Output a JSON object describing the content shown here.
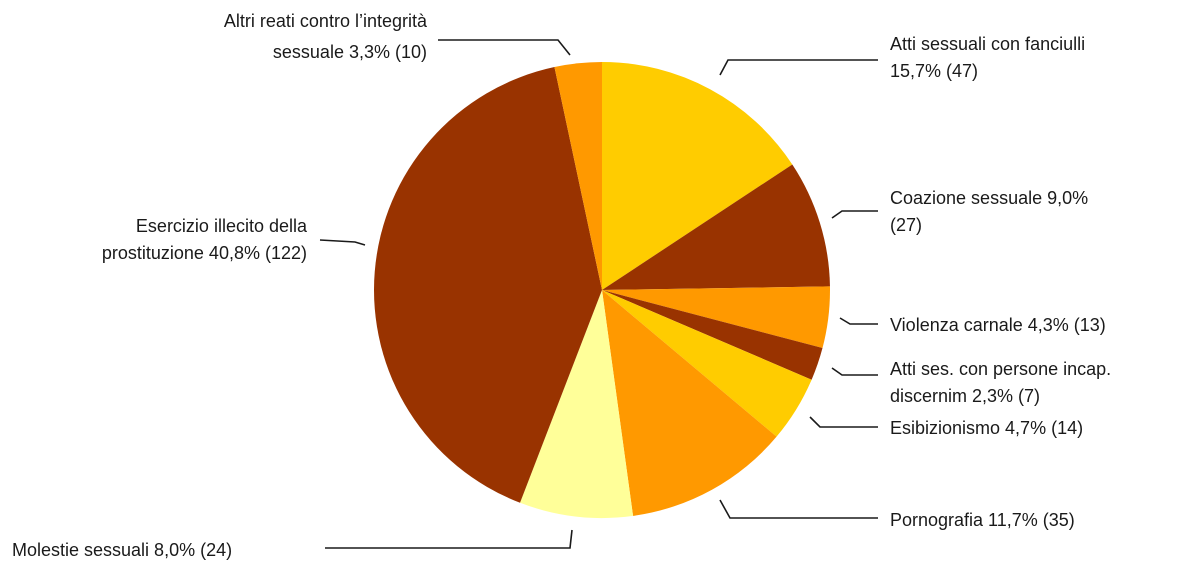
{
  "chart_data": {
    "type": "pie",
    "title": "",
    "start_angle_deg": 0,
    "direction": "clockwise",
    "slices": [
      {
        "name": "Atti sessuali con fanciulli",
        "value": 47,
        "percent": "15,7%",
        "label_lines": [
          "Atti sessuali con fanciulli",
          "15,7% (47)"
        ],
        "color": "#FFCC00"
      },
      {
        "name": "Coazione sessuale",
        "value": 27,
        "percent": "9,0%",
        "label_lines": [
          "Coazione sessuale 9,0%",
          "(27)"
        ],
        "color": "#993300"
      },
      {
        "name": "Violenza carnale",
        "value": 13,
        "percent": "4,3%",
        "label_lines": [
          "Violenza carnale 4,3% (13)"
        ],
        "color": "#FF9900"
      },
      {
        "name": "Atti ses. con persone incap. discernim",
        "value": 7,
        "percent": "2,3%",
        "label_lines": [
          "Atti ses. con persone incap.",
          "discernim 2,3% (7)"
        ],
        "color": "#993300"
      },
      {
        "name": "Esibizionismo",
        "value": 14,
        "percent": "4,7%",
        "label_lines": [
          "Esibizionismo 4,7% (14)"
        ],
        "color": "#FFCC00"
      },
      {
        "name": "Pornografia",
        "value": 35,
        "percent": "11,7%",
        "label_lines": [
          "Pornografia 11,7% (35)"
        ],
        "color": "#FF9900"
      },
      {
        "name": "Molestie sessuali",
        "value": 24,
        "percent": "8,0%",
        "label_lines": [
          "Molestie sessuali 8,0% (24)"
        ],
        "color": "#FFFF99"
      },
      {
        "name": "Esercizio illecito della prostituzione",
        "value": 122,
        "percent": "40,8%",
        "label_lines": [
          "Esercizio illecito della",
          "prostituzione 40,8% (122)"
        ],
        "color": "#993300"
      },
      {
        "name": "Altri reati contro l’integrità sessuale",
        "value": 10,
        "percent": "3,3%",
        "label_lines": [
          "Altri reati contro l’integrità",
          "sessuale 3,3% (10)"
        ],
        "color": "#FF9900"
      }
    ]
  }
}
